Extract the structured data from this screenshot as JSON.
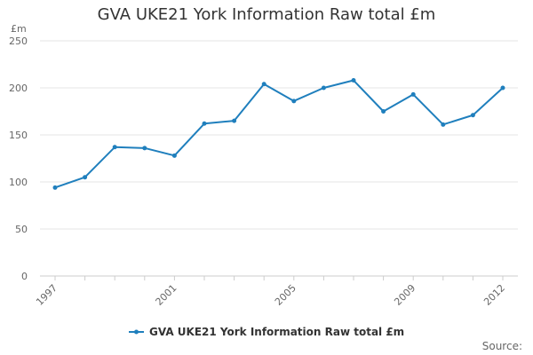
{
  "chart_data": {
    "type": "line",
    "title": "GVA UKE21 York Information Raw total £m",
    "unit_label": "£m",
    "x": [
      1997,
      1998,
      1999,
      2000,
      2001,
      2002,
      2003,
      2004,
      2005,
      2006,
      2007,
      2008,
      2009,
      2010,
      2011,
      2012
    ],
    "x_tick_labels": [
      "1997",
      "2001",
      "2005",
      "2009",
      "2012"
    ],
    "series": [
      {
        "name": "GVA UKE21 York Information Raw total £m",
        "color": "#1f7fbd",
        "values": [
          94,
          105,
          137,
          136,
          128,
          162,
          165,
          204,
          186,
          200,
          208,
          175,
          193,
          161,
          171,
          200
        ]
      }
    ],
    "ylim": [
      0,
      250
    ],
    "y_ticks": [
      0,
      50,
      100,
      150,
      200,
      250
    ],
    "grid": true,
    "legend_position": "bottom-center",
    "source_label": "Source:"
  }
}
